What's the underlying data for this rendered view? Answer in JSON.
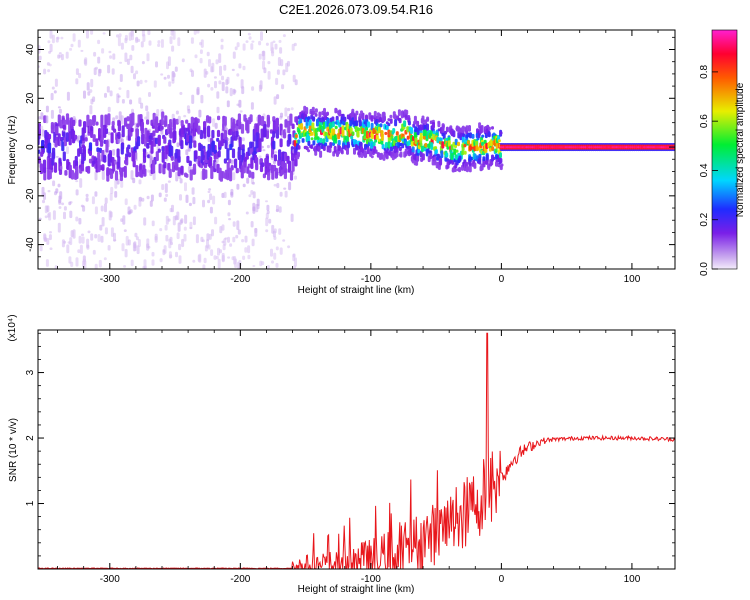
{
  "figure": {
    "title": "C2E1.2026.073.09.54.R16"
  },
  "chart_data": [
    {
      "type": "heatmap",
      "xlabel": "Height of straight line (km)",
      "ylabel": "Frequency (Hz)",
      "xlim": [
        -355,
        133
      ],
      "ylim": [
        -50,
        48
      ],
      "x_ticks": [
        -300,
        -200,
        -100,
        0,
        100
      ],
      "y_ticks": [
        -40,
        -20,
        0,
        20,
        40
      ],
      "grid": false,
      "colorbar": {
        "label": "Normalized spectral amplitude",
        "range": [
          0,
          0.97
        ],
        "ticks": [
          0.0,
          0.2,
          0.4,
          0.6,
          0.8
        ],
        "colormap": "rainbow (violet-blue-cyan-green-yellow-red-magenta)"
      },
      "ridge": {
        "x": [
          -355,
          -300,
          -250,
          -200,
          -160,
          -155,
          -140,
          -120,
          -100,
          -85,
          -75,
          -65,
          -55,
          -45,
          -35,
          -25,
          -15,
          -5,
          0,
          10,
          50,
          100,
          133
        ],
        "frequency": [
          0,
          0,
          0,
          0,
          0,
          7,
          6,
          6,
          5,
          4,
          6,
          2,
          3,
          0,
          -1,
          0,
          0,
          1,
          0,
          0,
          0,
          0,
          0
        ]
      },
      "regions": [
        {
          "x_range": [
            -355,
            -158
          ],
          "description": "broad scattered noise",
          "frequency_spread": [
            -50,
            48
          ],
          "max_amplitude": 0.2
        },
        {
          "x_range": [
            -158,
            0
          ],
          "description": "tracked signal",
          "frequency_spread": [
            -8,
            14
          ],
          "max_amplitude": 0.95
        },
        {
          "x_range": [
            0,
            133
          ],
          "description": "steady tone",
          "frequency_spread": [
            -1.5,
            1.5
          ],
          "max_amplitude": 0.97
        }
      ]
    },
    {
      "type": "line",
      "xlabel": "Height of straight line (km)",
      "ylabel": "SNR (10 * v/v)",
      "y_multiplier": "(x10⁴)",
      "xlim": [
        -355,
        133
      ],
      "ylim": [
        0,
        3.65
      ],
      "x_ticks": [
        -300,
        -200,
        -100,
        0,
        100
      ],
      "y_ticks": [
        1,
        2,
        3
      ],
      "grid": false,
      "series": [
        {
          "color": "#e8161b",
          "x": [
            -355,
            -160,
            -140,
            -120,
            -100,
            -90,
            -80,
            -70,
            -60,
            -50,
            -40,
            -30,
            -25,
            -20,
            -15,
            -12,
            -11,
            -10,
            -8,
            -5,
            0,
            5,
            10,
            20,
            30,
            40,
            60,
            80,
            100,
            133
          ],
          "y": [
            0.01,
            0.01,
            0.02,
            0.05,
            0.12,
            0.18,
            0.25,
            0.35,
            0.45,
            0.55,
            0.65,
            0.8,
            0.9,
            1.0,
            1.1,
            1.2,
            3.6,
            1.3,
            1.25,
            1.3,
            1.4,
            1.55,
            1.7,
            1.85,
            1.95,
            1.98,
            2.0,
            2.0,
            2.0,
            1.98
          ]
        }
      ]
    }
  ]
}
